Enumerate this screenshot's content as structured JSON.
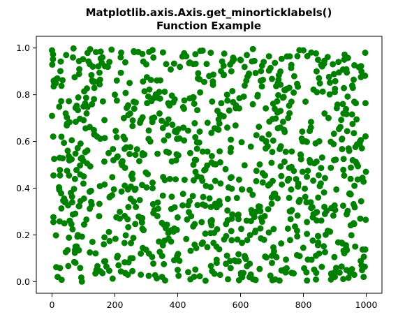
{
  "chart_data": {
    "type": "scatter",
    "title": [
      "Matplotlib.axis.Axis.get_minorticklabels()",
      "Function Example"
    ],
    "xlabel": "",
    "ylabel": "",
    "xlim": [
      -50,
      1050
    ],
    "ylim": [
      -0.05,
      1.05
    ],
    "x_ticks": [
      0,
      200,
      400,
      600,
      800,
      1000
    ],
    "x_tick_labels": [
      "0",
      "200",
      "400",
      "600",
      "800",
      "1000"
    ],
    "y_ticks": [
      0.0,
      0.2,
      0.4,
      0.6,
      0.8,
      1.0
    ],
    "y_tick_labels": [
      "0.0",
      "0.2",
      "0.4",
      "0.6",
      "0.8",
      "1.0"
    ],
    "grid": false,
    "legend": "none",
    "series": [
      {
        "color": "#008000",
        "marker": "circle",
        "count": 1000,
        "x_range": [
          0,
          999
        ],
        "y_range": [
          0,
          1
        ],
        "distribution": "uniform random",
        "points_sample": [
          [
            0,
            0.99
          ],
          [
            12,
            0.85
          ],
          [
            18,
            0.02
          ],
          [
            30,
            0.62
          ],
          [
            45,
            0.97
          ],
          [
            60,
            0.38
          ],
          [
            75,
            0.15
          ],
          [
            95,
            0.0
          ],
          [
            110,
            0.72
          ],
          [
            130,
            0.92
          ],
          [
            150,
            0.28
          ],
          [
            180,
            0.55
          ],
          [
            200,
            0.8
          ],
          [
            220,
            0.98
          ],
          [
            250,
            0.1
          ],
          [
            280,
            0.68
          ],
          [
            300,
            0.93
          ],
          [
            320,
            0.4
          ],
          [
            350,
            0.02
          ],
          [
            380,
            0.22
          ],
          [
            400,
            0.05
          ],
          [
            420,
            0.74
          ],
          [
            450,
            0.5
          ],
          [
            480,
            0.33
          ],
          [
            500,
            0.88
          ],
          [
            530,
            0.65
          ],
          [
            560,
            0.01
          ],
          [
            590,
            0.18
          ],
          [
            620,
            0.97
          ],
          [
            650,
            0.43
          ],
          [
            680,
            0.57
          ],
          [
            700,
            0.08
          ],
          [
            740,
            0.82
          ],
          [
            760,
            0.3
          ],
          [
            800,
            0.99
          ],
          [
            820,
            0.52
          ],
          [
            850,
            0.12
          ],
          [
            880,
            0.7
          ],
          [
            900,
            0.02
          ],
          [
            930,
            0.95
          ],
          [
            960,
            0.25
          ],
          [
            980,
            0.6
          ],
          [
            999,
            0.47
          ]
        ]
      }
    ]
  }
}
